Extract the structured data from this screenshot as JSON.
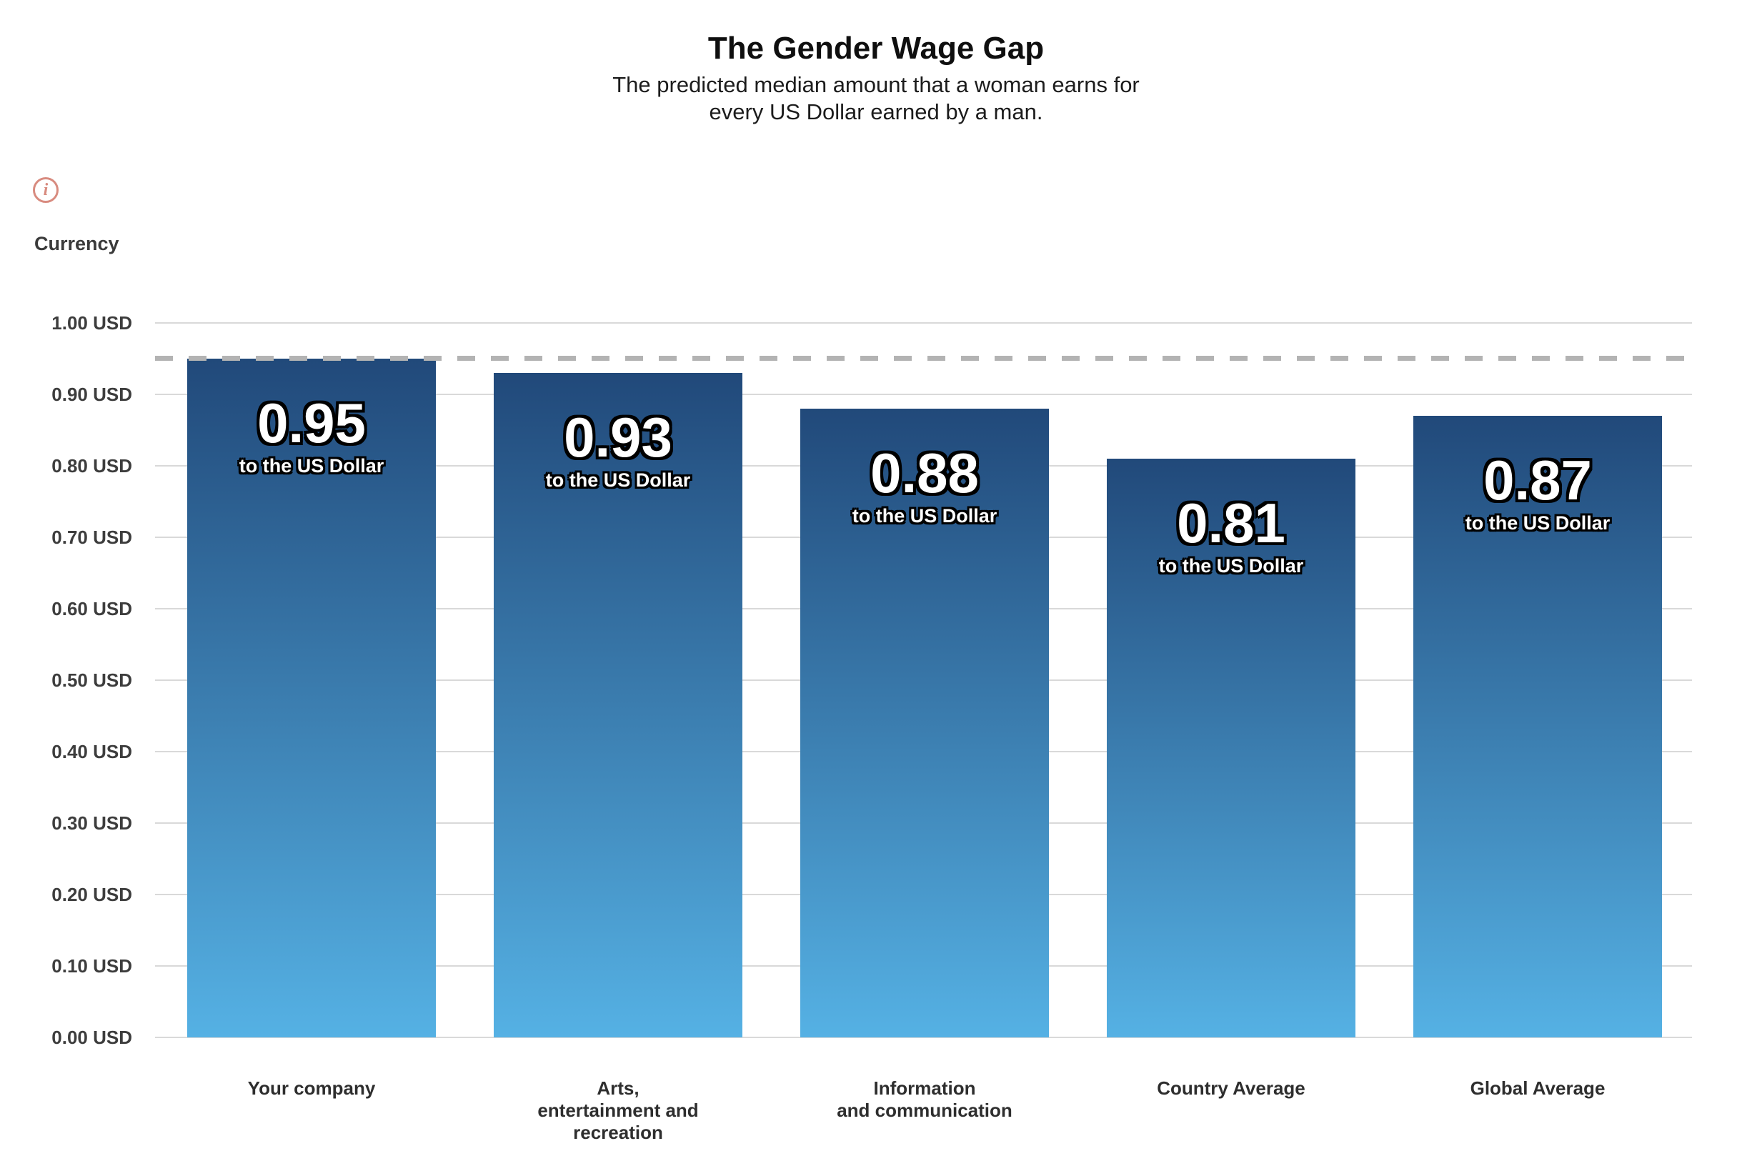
{
  "header": {
    "title": "The Gender Wage Gap",
    "subtitle": "The predicted median amount that a woman earns for\nevery US Dollar earned by a man."
  },
  "info": {
    "icon_glyph": "i"
  },
  "chart_data": {
    "type": "bar",
    "title": "The Gender Wage Gap",
    "subtitle": "The predicted median amount that a woman earns for every US Dollar earned by a man.",
    "ylabel": "Currency",
    "unit": "USD",
    "ylim": [
      0,
      1.0
    ],
    "grid": true,
    "legend": "none",
    "yticks": [
      {
        "value": 1.0,
        "label": "1.00 USD"
      },
      {
        "value": 0.9,
        "label": "0.90 USD"
      },
      {
        "value": 0.8,
        "label": "0.80 USD"
      },
      {
        "value": 0.7,
        "label": "0.70 USD"
      },
      {
        "value": 0.6,
        "label": "0.60 USD"
      },
      {
        "value": 0.5,
        "label": "0.50 USD"
      },
      {
        "value": 0.4,
        "label": "0.40 USD"
      },
      {
        "value": 0.3,
        "label": "0.30 USD"
      },
      {
        "value": 0.2,
        "label": "0.20 USD"
      },
      {
        "value": 0.1,
        "label": "0.10 USD"
      },
      {
        "value": 0.0,
        "label": "0.00 USD"
      }
    ],
    "reference_line": {
      "value": 0.95,
      "style": "dashed"
    },
    "categories": [
      "Your company",
      "Arts, entertainment and recreation",
      "Information and communication",
      "Country Average",
      "Global Average"
    ],
    "values": [
      0.95,
      0.93,
      0.88,
      0.81,
      0.87
    ],
    "bars": [
      {
        "category_label": "Your company",
        "value": 0.95,
        "value_label": "0.95",
        "sub_label": "to the US Dollar"
      },
      {
        "category_label": "Arts,\nentertainment and\nrecreation",
        "value": 0.93,
        "value_label": "0.93",
        "sub_label": "to the US Dollar"
      },
      {
        "category_label": "Information\nand communication",
        "value": 0.88,
        "value_label": "0.88",
        "sub_label": "to the US Dollar"
      },
      {
        "category_label": "Country Average",
        "value": 0.81,
        "value_label": "0.81",
        "sub_label": "to the US Dollar"
      },
      {
        "category_label": "Global Average",
        "value": 0.87,
        "value_label": "0.87",
        "sub_label": "to the US Dollar"
      }
    ],
    "colors": {
      "bar_gradient_top": "#21497a",
      "bar_gradient_bottom": "#55b1e4",
      "gridline": "#d9d9d9",
      "reference_dash": "#b3b3b3",
      "info_icon": "#d88b7f",
      "axis_text": "#3d3d3d",
      "category_text": "#2e2e2e"
    }
  }
}
